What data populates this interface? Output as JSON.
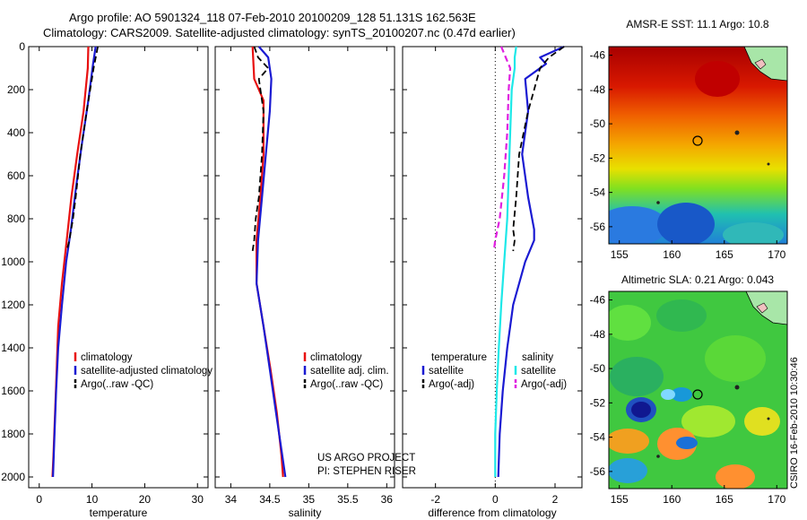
{
  "header": {
    "line1": "Argo profile: AO 5901324_118 07-Feb-2010 20100209_128 51.131S 162.563E",
    "line2": "Climatology: CARS2009. Satellite-adjusted climatology: synTS_20100207.nc (0.47d earlier)"
  },
  "colors": {
    "clim": "#e81010",
    "sat": "#1a1ad2",
    "argo": "#000000",
    "cyan": "#1ee8e8",
    "magenta": "#e020e0"
  },
  "chart_data": [
    {
      "type": "line",
      "id": "temperature",
      "xlabel": "temperature",
      "xlim": [
        -2,
        32
      ],
      "xticks": [
        "0",
        "10",
        "20",
        "30"
      ],
      "ylim": [
        0,
        2050
      ],
      "yticks": [
        "0",
        "200",
        "400",
        "600",
        "800",
        "1000",
        "1200",
        "1400",
        "1600",
        "1800",
        "2000"
      ],
      "legend": [
        "climatology",
        "satellite-adjusted climatology",
        "Argo(..raw -QC)"
      ],
      "series": [
        {
          "name": "climatology",
          "style": "clim",
          "points": [
            [
              9.3,
              0
            ],
            [
              9.2,
              100
            ],
            [
              8.4,
              300
            ],
            [
              7.2,
              500
            ],
            [
              6.1,
              700
            ],
            [
              5.2,
              900
            ],
            [
              4.3,
              1100
            ],
            [
              3.6,
              1300
            ],
            [
              3.3,
              1500
            ],
            [
              3.0,
              1700
            ],
            [
              2.7,
              1900
            ],
            [
              2.5,
              2000
            ]
          ]
        },
        {
          "name": "satellite-adjusted climatology",
          "style": "sat",
          "points": [
            [
              10.7,
              0
            ],
            [
              10.2,
              80
            ],
            [
              9.3,
              250
            ],
            [
              8.1,
              450
            ],
            [
              7.0,
              650
            ],
            [
              6.0,
              850
            ],
            [
              5.1,
              1000
            ],
            [
              4.3,
              1200
            ],
            [
              3.6,
              1400
            ],
            [
              3.2,
              1600
            ],
            [
              2.9,
              1800
            ],
            [
              2.6,
              2000
            ]
          ]
        },
        {
          "name": "Argo(..raw -QC)",
          "style": "argo",
          "points": [
            [
              11.1,
              0
            ],
            [
              10.3,
              100
            ],
            [
              9.0,
              300
            ],
            [
              7.8,
              500
            ],
            [
              6.9,
              700
            ],
            [
              6.4,
              800
            ],
            [
              5.7,
              900
            ],
            [
              5.2,
              950
            ]
          ]
        }
      ]
    },
    {
      "type": "line",
      "id": "salinity",
      "xlabel": "salinity",
      "xlim": [
        33.8,
        36.1
      ],
      "xticks": [
        "34",
        "34.5",
        "35",
        "35.5",
        "36"
      ],
      "ylim": [
        0,
        2050
      ],
      "yticks": [],
      "legend": [
        "climatology",
        "satellite adj. clim.",
        "Argo(..raw -QC)"
      ],
      "notes": [
        "US ARGO PROJECT",
        "PI: STEPHEN RISER"
      ],
      "series": [
        {
          "name": "climatology",
          "style": "clim",
          "points": [
            [
              34.28,
              0
            ],
            [
              34.3,
              150
            ],
            [
              34.42,
              250
            ],
            [
              34.42,
              500
            ],
            [
              34.38,
              700
            ],
            [
              34.33,
              900
            ],
            [
              34.33,
              1100
            ],
            [
              34.42,
              1300
            ],
            [
              34.51,
              1500
            ],
            [
              34.59,
              1700
            ],
            [
              34.65,
              1900
            ],
            [
              34.67,
              2000
            ]
          ]
        },
        {
          "name": "satellite adj. clim.",
          "style": "sat",
          "points": [
            [
              34.36,
              0
            ],
            [
              34.48,
              50
            ],
            [
              34.52,
              150
            ],
            [
              34.5,
              300
            ],
            [
              34.45,
              500
            ],
            [
              34.4,
              700
            ],
            [
              34.35,
              900
            ],
            [
              34.33,
              1100
            ],
            [
              34.42,
              1300
            ],
            [
              34.5,
              1500
            ],
            [
              34.58,
              1700
            ],
            [
              34.66,
              1900
            ],
            [
              34.7,
              2000
            ]
          ]
        },
        {
          "name": "Argo(..raw -QC)",
          "style": "argo",
          "points": [
            [
              34.3,
              0
            ],
            [
              34.35,
              50
            ],
            [
              34.48,
              100
            ],
            [
              34.36,
              150
            ],
            [
              34.42,
              300
            ],
            [
              34.4,
              500
            ],
            [
              34.36,
              700
            ],
            [
              34.32,
              800
            ],
            [
              34.3,
              900
            ],
            [
              34.28,
              950
            ]
          ]
        }
      ]
    },
    {
      "type": "line",
      "id": "difference",
      "xlabel": "difference from climatology",
      "xlim": [
        -3.1,
        2.9
      ],
      "xticks": [
        "-2",
        "0",
        "2"
      ],
      "ylim": [
        0,
        2050
      ],
      "yticks": [],
      "legend_temperature": [
        "temperature",
        "satellite",
        "Argo(-adj)"
      ],
      "legend_salinity": [
        "salinity",
        "satellite",
        "Argo(-adj)"
      ],
      "series": [
        {
          "name": "temperature satellite",
          "style": "sat",
          "points": [
            [
              2.3,
              0
            ],
            [
              1.5,
              50
            ],
            [
              1.7,
              80
            ],
            [
              1.0,
              150
            ],
            [
              1.1,
              300
            ],
            [
              0.9,
              500
            ],
            [
              1.1,
              700
            ],
            [
              1.3,
              850
            ],
            [
              1.3,
              900
            ],
            [
              1.0,
              1000
            ],
            [
              0.6,
              1200
            ],
            [
              0.4,
              1400
            ],
            [
              0.25,
              1600
            ],
            [
              0.15,
              1800
            ],
            [
              0.1,
              2000
            ]
          ]
        },
        {
          "name": "temperature Argo(-adj)",
          "style": "argo",
          "points": [
            [
              2.3,
              0
            ],
            [
              1.8,
              50
            ],
            [
              1.5,
              100
            ],
            [
              1.3,
              200
            ],
            [
              1.1,
              300
            ],
            [
              0.8,
              500
            ],
            [
              0.7,
              700
            ],
            [
              0.6,
              850
            ],
            [
              0.65,
              900
            ],
            [
              0.6,
              950
            ]
          ]
        },
        {
          "name": "salinity satellite",
          "style": "cyan",
          "points": [
            [
              0.7,
              0
            ],
            [
              0.65,
              50
            ],
            [
              0.65,
              100
            ],
            [
              0.55,
              200
            ],
            [
              0.5,
              400
            ],
            [
              0.45,
              600
            ],
            [
              0.4,
              800
            ],
            [
              0.3,
              1000
            ],
            [
              0.2,
              1200
            ],
            [
              0.12,
              1400
            ],
            [
              0.05,
              1600
            ],
            [
              0.0,
              1800
            ],
            [
              0.0,
              2000
            ]
          ]
        },
        {
          "name": "salinity Argo(-adj)",
          "style": "magenta",
          "points": [
            [
              0.2,
              0
            ],
            [
              0.5,
              100
            ],
            [
              0.45,
              200
            ],
            [
              0.4,
              400
            ],
            [
              0.3,
              600
            ],
            [
              0.15,
              800
            ],
            [
              0.0,
              900
            ],
            [
              -0.05,
              950
            ]
          ]
        }
      ]
    },
    {
      "type": "heatmap",
      "id": "sst-map",
      "title": "AMSR-E SST: 11.1 Argo: 10.8",
      "xticks": [
        "155",
        "160",
        "165",
        "170"
      ],
      "yticks": [
        "-46",
        "-48",
        "-50",
        "-52",
        "-54",
        "-56"
      ],
      "xlim": [
        154,
        171
      ],
      "ylim": [
        -57,
        -45.5
      ],
      "float_position": [
        162.563,
        -51.131
      ]
    },
    {
      "type": "heatmap",
      "id": "sla-map",
      "title": "Altimetric SLA: 0.21 Argo: 0.043",
      "xticks": [
        "155",
        "160",
        "165",
        "170"
      ],
      "yticks": [
        "-46",
        "-48",
        "-50",
        "-52",
        "-54",
        "-56"
      ],
      "xlim": [
        154,
        171
      ],
      "ylim": [
        -57,
        -45.5
      ],
      "float_position": [
        162.563,
        -51.131
      ]
    }
  ],
  "side_caption": "CSIRO 16-Feb-2010 10:30:46"
}
